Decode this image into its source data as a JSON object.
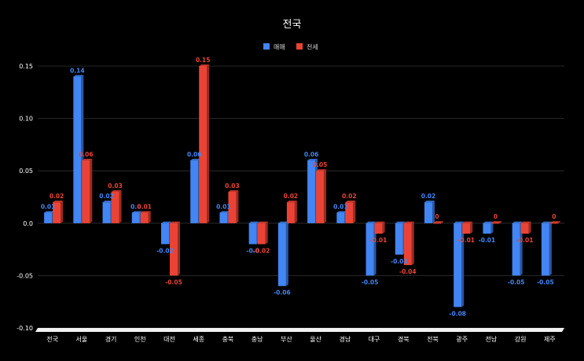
{
  "chart_data": {
    "type": "bar",
    "title": "전국",
    "categories": [
      "전국",
      "서울",
      "경기",
      "인천",
      "대전",
      "세종",
      "충북",
      "충남",
      "부산",
      "울산",
      "경남",
      "대구",
      "경북",
      "전북",
      "광주",
      "전남",
      "강원",
      "제주"
    ],
    "series": [
      {
        "name": "매매",
        "color": "#4285f4",
        "values": [
          0.01,
          0.14,
          0.02,
          0.01,
          -0.02,
          0.06,
          0.01,
          -0.02,
          -0.06,
          0.06,
          0.01,
          -0.05,
          -0.03,
          0.02,
          -0.08,
          -0.01,
          -0.05,
          -0.05
        ],
        "labels": [
          "0.01",
          "0.14",
          "0.02",
          "0.0",
          "-0.02",
          "0.06",
          "0.01",
          "-0.0",
          "-0.06",
          "0.06",
          "0.01",
          "-0.05",
          "-0.03",
          "0.02",
          "-0.08",
          "-0.01",
          "-0.05",
          "-0.05"
        ]
      },
      {
        "name": "전세",
        "color": "#ea4335",
        "values": [
          0.02,
          0.06,
          0.03,
          0.01,
          -0.05,
          0.15,
          0.03,
          -0.02,
          0.02,
          0.05,
          0.02,
          -0.01,
          -0.04,
          0,
          -0.01,
          0,
          -0.01,
          0
        ],
        "labels": [
          "0.02",
          "0.06",
          "0.03",
          "0.01",
          "-0.05",
          "0.15",
          "0.03",
          "-0.02",
          "0.02",
          "0.05",
          "0.02",
          "-0.01",
          "-0.04",
          "0",
          "-0.01",
          "0",
          "-0.01",
          "0"
        ]
      }
    ],
    "ylim": [
      -0.1,
      0.15
    ],
    "yticks": [
      "0.15",
      "0.10",
      "0.05",
      "0.0",
      "-0.05",
      "-0.10"
    ],
    "ytick_values": [
      0.15,
      0.1,
      0.05,
      0.0,
      -0.05,
      -0.1
    ],
    "xlabel": "",
    "ylabel": "",
    "grid": true,
    "legend_position": "top-center"
  }
}
